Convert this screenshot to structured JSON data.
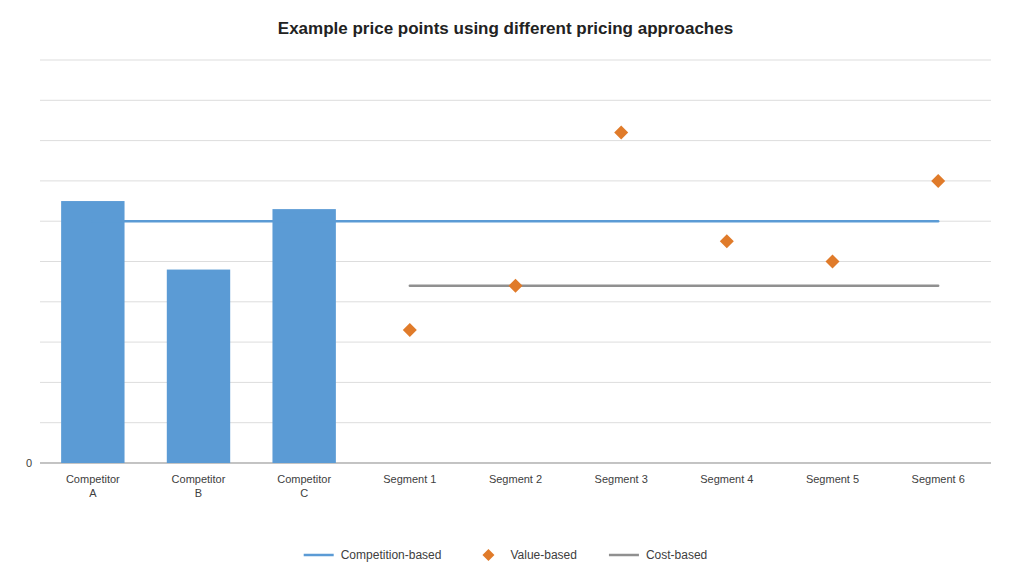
{
  "chart_data": {
    "type": "bar",
    "title": "Example price points using different pricing approaches",
    "categories": [
      "Competitor\nA",
      "Competitor\nB",
      "Competitor\nC",
      "Segment 1",
      "Segment 2",
      "Segment 3",
      "Segment 4",
      "Segment 5",
      "Segment 6"
    ],
    "series": [
      {
        "type": "bar",
        "color": "#5B9BD5",
        "values": [
          65,
          48,
          63,
          null,
          null,
          null,
          null,
          null,
          null
        ]
      },
      {
        "name": "Competition-based",
        "type": "line",
        "color": "#5B9BD5",
        "values": [
          60,
          60,
          60,
          60,
          60,
          60,
          60,
          60,
          60
        ]
      },
      {
        "name": "Value-based",
        "type": "scatter",
        "marker": "diamond",
        "color": "#E07B2A",
        "values": [
          null,
          null,
          null,
          33,
          44,
          82,
          55,
          50,
          70
        ]
      },
      {
        "name": "Cost-based",
        "type": "line",
        "color": "#909090",
        "values": [
          null,
          null,
          null,
          44,
          44,
          44,
          44,
          44,
          44
        ]
      }
    ],
    "ylim": [
      0,
      100
    ],
    "yticks": [
      0,
      {
        "value": 10,
        "label": null
      },
      {
        "value": 20,
        "label": null
      },
      {
        "value": 30,
        "label": null
      },
      {
        "value": 40,
        "label": null
      },
      {
        "value": 50,
        "label": null
      },
      {
        "value": 60,
        "label": null
      },
      {
        "value": 70,
        "label": null
      },
      {
        "value": 80,
        "label": null
      },
      {
        "value": 90,
        "label": null
      },
      {
        "value": 100,
        "label": null
      }
    ],
    "grid": true,
    "legend": "bottom"
  }
}
